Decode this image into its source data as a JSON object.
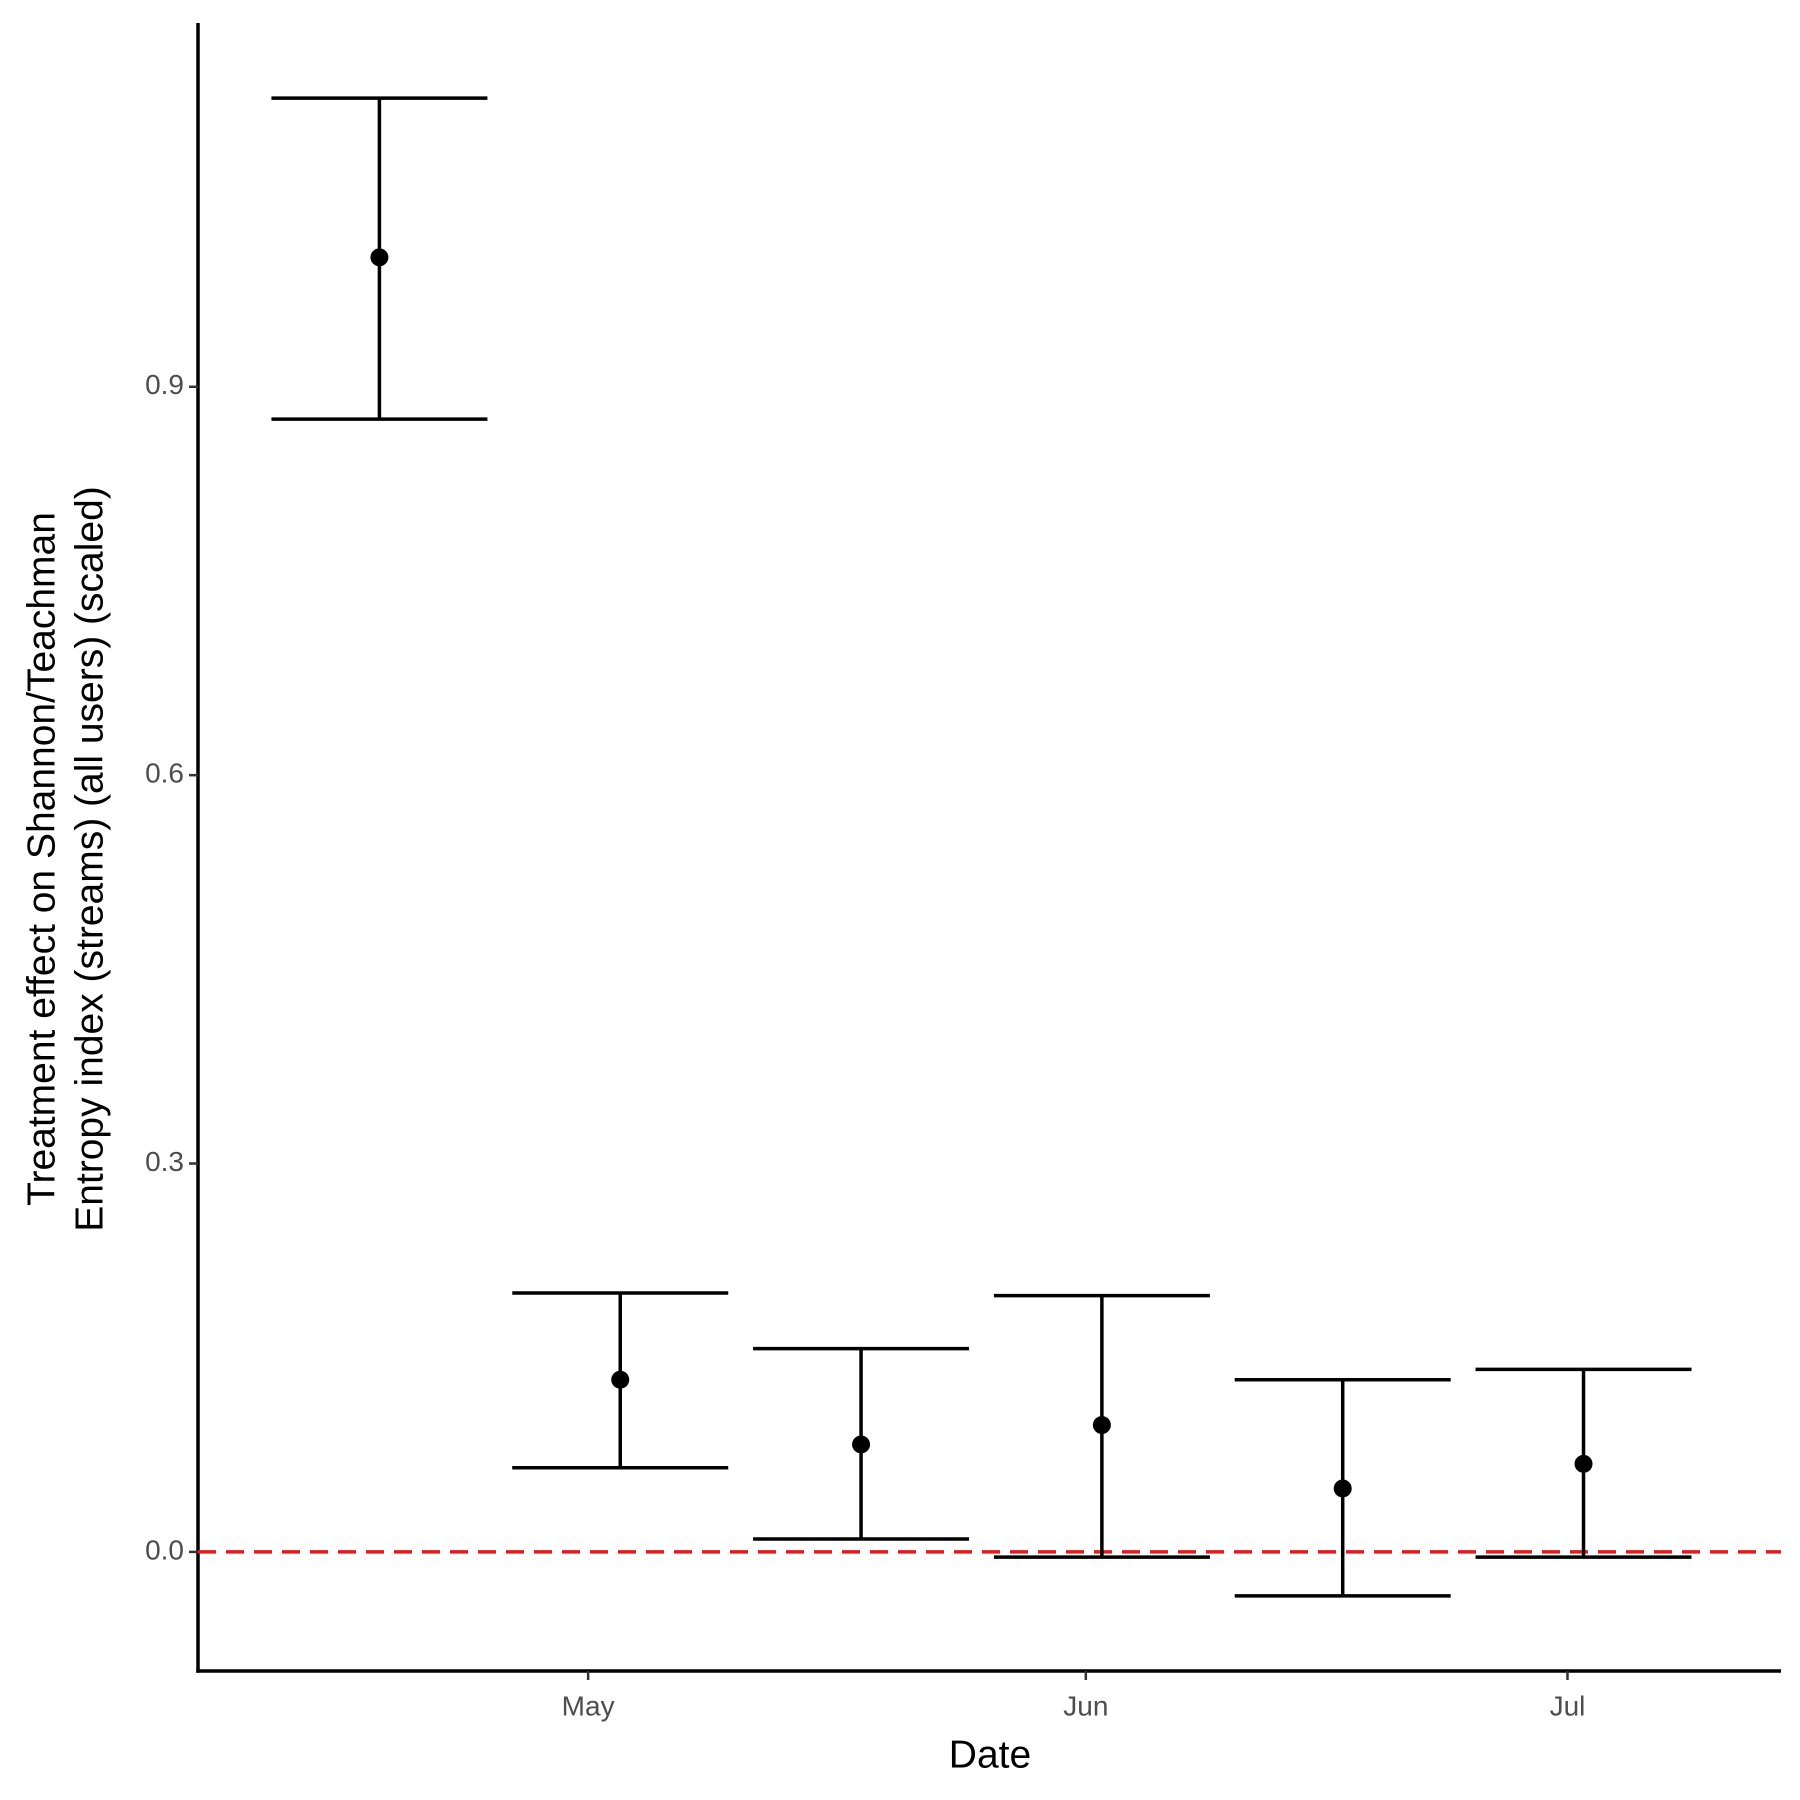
{
  "chart_data": {
    "type": "errorbar",
    "xlabel": "Date",
    "ylabel": [
      "Treatment effect on Shannon/Teachman",
      "Entropy index (streams) (all users) (scaled)"
    ],
    "x": [
      108,
      123,
      138,
      153,
      168,
      183
    ],
    "series": [
      {
        "color": "#000000",
        "values": [
          1.0,
          0.133,
          0.083,
          0.098,
          0.049,
          0.068
        ],
        "lower": [
          0.875,
          0.065,
          0.01,
          -0.004,
          -0.034,
          -0.004
        ],
        "upper": [
          1.123,
          0.2,
          0.157,
          0.198,
          0.133,
          0.141
        ]
      }
    ],
    "xlim": [
      96.7,
      195.3
    ],
    "xticks": [
      {
        "value": 121,
        "label": "May"
      },
      {
        "value": 152,
        "label": "Jun"
      },
      {
        "value": 182,
        "label": "Jul"
      }
    ],
    "ylim": [
      -0.092,
      1.181
    ],
    "yticks": [
      {
        "value": 0,
        "label": "0.0"
      },
      0.3,
      0.6,
      0.9
    ],
    "hline": {
      "value": 0,
      "color": "#e41a1c"
    },
    "grid": false
  }
}
